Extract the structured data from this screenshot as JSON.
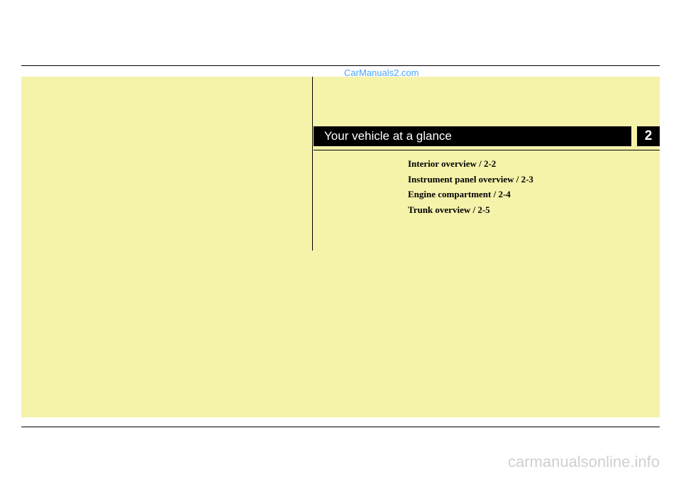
{
  "watermark_top": "CarManuals2.com",
  "chapter": {
    "title": "Your vehicle at a glance",
    "number": "2"
  },
  "toc": {
    "items": [
      "Interior overview / 2-2",
      "Instrument panel overview / 2-3",
      "Engine compartment / 2-4",
      "Trunk overview / 2-5"
    ]
  },
  "watermark_bottom": "carmanualsonline.info",
  "colors": {
    "page_bg": "#ffffff",
    "yellow_bg": "#f5f2aa",
    "banner_bg": "#000000",
    "banner_text": "#ffffff",
    "toc_text": "#000000",
    "watermark_top_color": "#4da6ff",
    "watermark_bottom_color": "#d0d0d0",
    "line_color": "#000000"
  }
}
